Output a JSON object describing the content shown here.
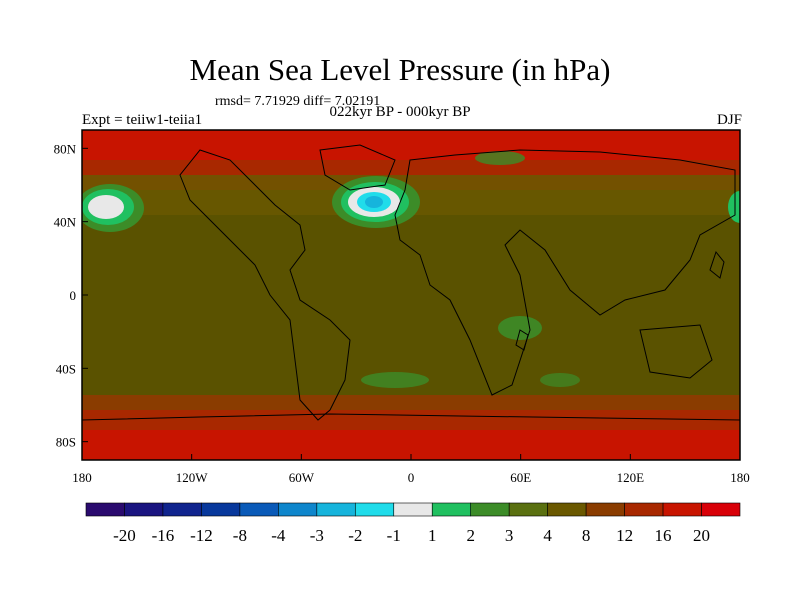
{
  "title": "Mean Sea Level Pressure (in hPa)",
  "stats": "rmsd= 7.71929  diff= 7.02191",
  "period": "022kyr BP - 000kyr BP",
  "experiment": "Expt = teiiw1-teiia1",
  "season": "DJF",
  "chart_data": {
    "type": "heatmap",
    "map_projection": "cylindrical equidistant",
    "lon_range": [
      -180,
      180
    ],
    "lat_range": [
      -90,
      90
    ],
    "lon_ticks": [
      "180",
      "120W",
      "60W",
      "0",
      "60E",
      "120E",
      "180"
    ],
    "lat_ticks": [
      "80N",
      "40N",
      "0",
      "40S",
      "80S"
    ],
    "colorbar": {
      "labels": [
        "-20",
        "-16",
        "-12",
        "-8",
        "-4",
        "-3",
        "-2",
        "-1",
        "1",
        "2",
        "3",
        "4",
        "8",
        "12",
        "16",
        "20"
      ],
      "colors": [
        "#2a0a6e",
        "#1a1480",
        "#10248e",
        "#08389c",
        "#0a5ab8",
        "#0e86cc",
        "#16b4dc",
        "#20dcea",
        "#e8e8e8",
        "#20c060",
        "#3c8c28",
        "#5a7010",
        "#6a5800",
        "#8a3c00",
        "#a82800",
        "#c81400",
        "#d80008"
      ]
    },
    "background_level": "4 to 8",
    "features": [
      {
        "name": "North Pacific negative anomaly",
        "lon": -160,
        "lat": 42,
        "min_level": "-1 to 1"
      },
      {
        "name": "North Atlantic negative anomaly",
        "lon": -25,
        "lat": 45,
        "min_level": "-4 to -3"
      },
      {
        "name": "Arctic / Greenland high",
        "lat_range": [
          60,
          90
        ],
        "level": "16 to 20"
      },
      {
        "name": "Southern Ocean high",
        "lat_range": [
          -90,
          -55
        ],
        "level": "16 to 20"
      }
    ]
  }
}
